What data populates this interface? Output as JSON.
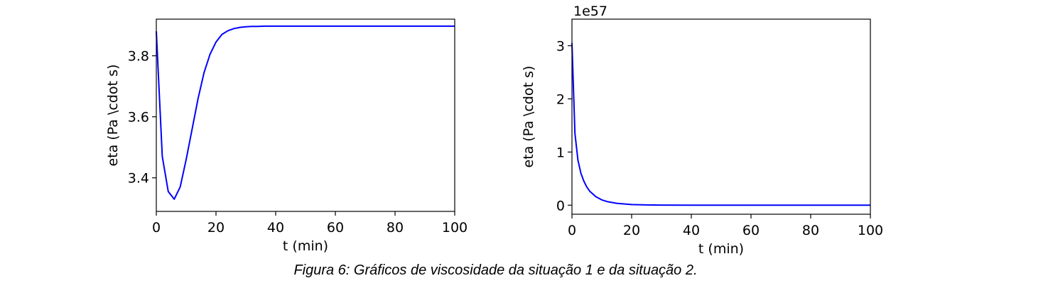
{
  "caption": "Figura 6: Gráficos de viscosidade da situação 1 e da situação 2.",
  "chart_data": [
    {
      "type": "line",
      "title": "",
      "xlabel": "t (min)",
      "ylabel": "eta (Pa \\cdot s)",
      "xlim": [
        0,
        100
      ],
      "ylim": [
        3.29,
        3.92
      ],
      "xticks": [
        0,
        20,
        40,
        60,
        80,
        100
      ],
      "xtick_labels": [
        "0",
        "20",
        "40",
        "60",
        "80",
        "100"
      ],
      "yticks": [
        3.4,
        3.6,
        3.8
      ],
      "ytick_labels": [
        "3.4",
        "3.6",
        "3.8"
      ],
      "offset_label": "",
      "grid": false,
      "line_color": "#0000ff",
      "series": [
        {
          "x": [
            0,
            2,
            4,
            6,
            8,
            10,
            12,
            14,
            16,
            18,
            20,
            22,
            24,
            26,
            28,
            30,
            32,
            34,
            36,
            40,
            50,
            60,
            70,
            80,
            90,
            100
          ],
          "y": [
            3.88,
            3.47,
            3.355,
            3.33,
            3.37,
            3.46,
            3.56,
            3.66,
            3.745,
            3.805,
            3.845,
            3.87,
            3.882,
            3.889,
            3.893,
            3.895,
            3.896,
            3.896,
            3.897,
            3.897,
            3.897,
            3.897,
            3.897,
            3.897,
            3.897,
            3.897
          ]
        }
      ]
    },
    {
      "type": "line",
      "title": "",
      "xlabel": "t (min)",
      "ylabel": "eta (Pa \\cdot s)",
      "xlim": [
        0,
        100
      ],
      "ylim": [
        -0.17,
        3.5
      ],
      "xticks": [
        0,
        20,
        40,
        60,
        80,
        100
      ],
      "xtick_labels": [
        "0",
        "20",
        "40",
        "60",
        "80",
        "100"
      ],
      "yticks": [
        0,
        1,
        2,
        3
      ],
      "ytick_labels": [
        "0",
        "1",
        "2",
        "3"
      ],
      "offset_label": "1e57",
      "grid": false,
      "line_color": "#0000ff",
      "series": [
        {
          "x": [
            0,
            1,
            2,
            3,
            4,
            5,
            6,
            8,
            10,
            12,
            15,
            20,
            25,
            30,
            40,
            50,
            60,
            70,
            80,
            90,
            100
          ],
          "y": [
            3.05,
            1.35,
            0.85,
            0.6,
            0.45,
            0.34,
            0.26,
            0.16,
            0.1,
            0.065,
            0.035,
            0.012,
            0.005,
            0.002,
            0.001,
            0,
            0,
            0,
            0,
            0,
            0
          ]
        }
      ]
    }
  ]
}
